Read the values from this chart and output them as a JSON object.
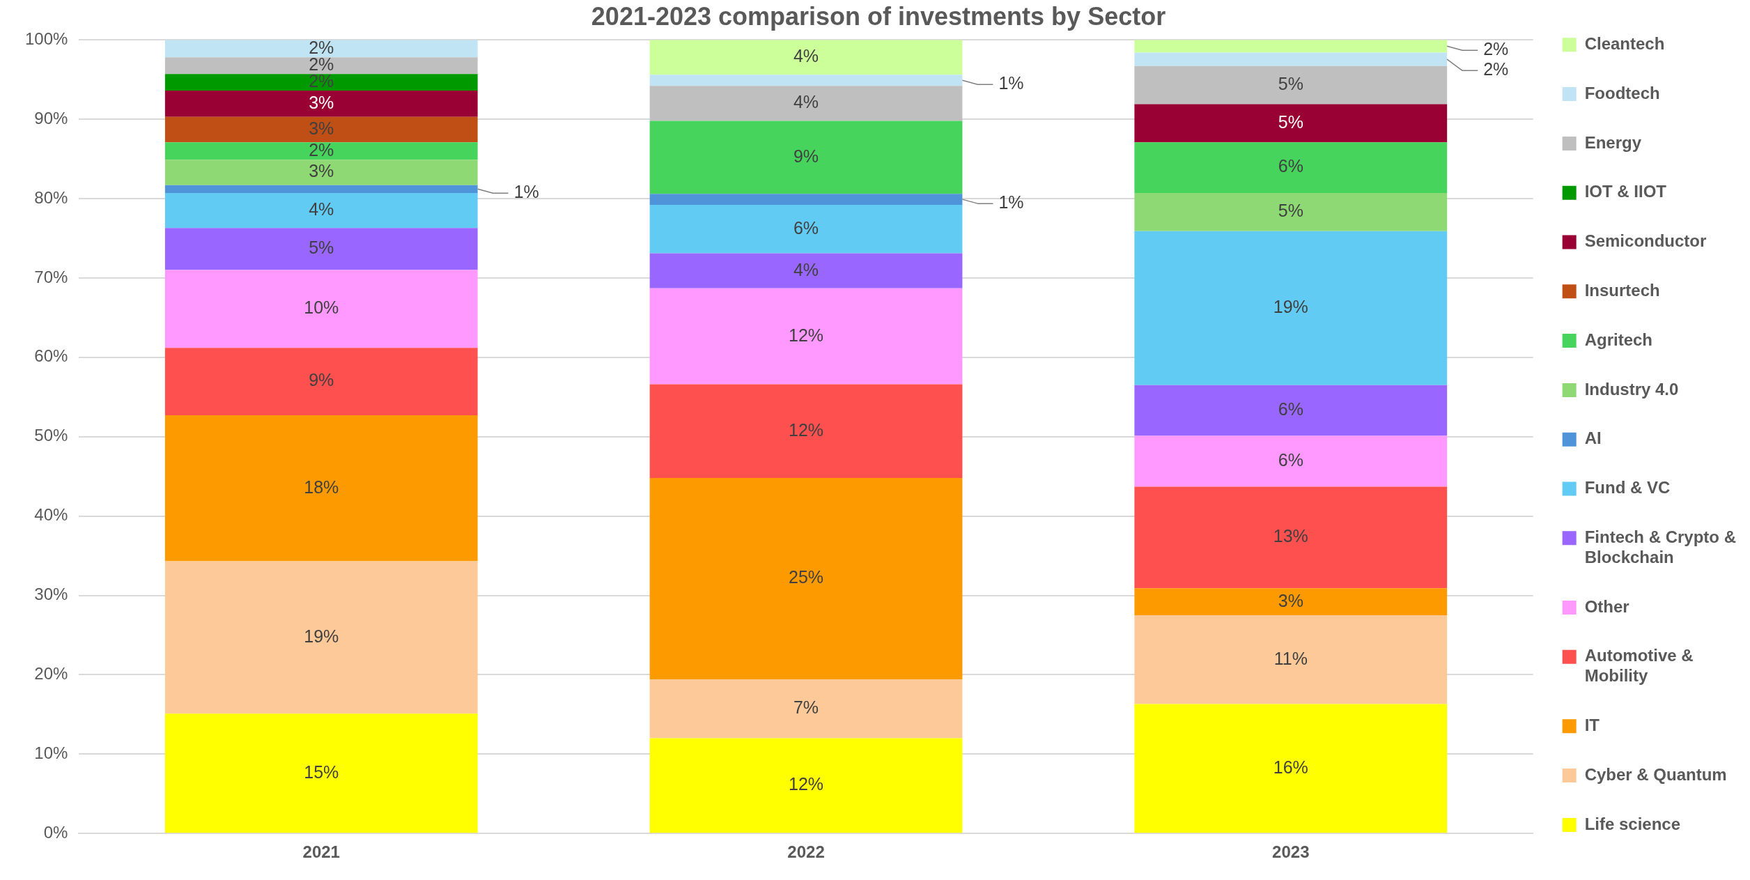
{
  "chart_data": {
    "type": "bar",
    "title": "2021-2023 comparison of investments by Sector",
    "categories": [
      "2021",
      "2022",
      "2023"
    ],
    "stacked": true,
    "ylim": [
      0,
      100
    ],
    "yticks": [
      {
        "value": 0,
        "label": "0%"
      },
      {
        "value": 10,
        "label": "10%"
      },
      {
        "value": 20,
        "label": "20%"
      },
      {
        "value": 30,
        "label": "30%"
      },
      {
        "value": 40,
        "label": "40%"
      },
      {
        "value": 50,
        "label": "50%"
      },
      {
        "value": 60,
        "label": "60%"
      },
      {
        "value": 70,
        "label": "70%"
      },
      {
        "value": 80,
        "label": "80%"
      },
      {
        "value": 90,
        "label": "90%"
      },
      {
        "value": 100,
        "label": "100%"
      }
    ],
    "grid": "y",
    "legend": "right",
    "series": [
      {
        "name": "Life science",
        "color": "#ffff00",
        "values": [
          15.1,
          12.0,
          16.3
        ],
        "value_labels": [
          "15%",
          "12%",
          "16%"
        ]
      },
      {
        "name": "Cyber & Quantum",
        "color": "#fdc998",
        "values": [
          19.2,
          7.4,
          11.2
        ],
        "value_labels": [
          "19%",
          "7%",
          "11%"
        ]
      },
      {
        "name": "IT",
        "color": "#fd9a00",
        "values": [
          18.4,
          25.4,
          3.4
        ],
        "value_labels": [
          "18%",
          "25%",
          "3%"
        ]
      },
      {
        "name": "Automotive & Mobility",
        "color": "#ff5050",
        "values": [
          8.5,
          11.8,
          12.8
        ],
        "value_labels": [
          "9%",
          "12%",
          "13%"
        ]
      },
      {
        "name": "Other",
        "color": "#ff99ff",
        "values": [
          9.8,
          12.1,
          6.4
        ],
        "value_labels": [
          "10%",
          "12%",
          "6%"
        ]
      },
      {
        "name": "Fintech & Crypto & Blockchain",
        "color": "#9966ff",
        "values": [
          5.3,
          4.4,
          6.4
        ],
        "value_labels": [
          "5%",
          "4%",
          "6%"
        ]
      },
      {
        "name": "Fund & VC",
        "color": "#61cbf4",
        "values": [
          4.4,
          6.1,
          19.4
        ],
        "value_labels": [
          "4%",
          "6%",
          "19%"
        ]
      },
      {
        "name": "AI",
        "color": "#4f93d8",
        "values": [
          1.0,
          1.4,
          null
        ],
        "value_labels": [
          "1%",
          "1%",
          null
        ]
      },
      {
        "name": "Industry 4.0",
        "color": "#8ed973",
        "values": [
          3.2,
          null,
          4.8
        ],
        "value_labels": [
          "3%",
          null,
          "5%"
        ]
      },
      {
        "name": "Agritech",
        "color": "#47d45c",
        "values": [
          2.2,
          9.2,
          6.4
        ],
        "value_labels": [
          "2%",
          "9%",
          "6%"
        ]
      },
      {
        "name": "Insurtech",
        "color": "#c04f15",
        "values": [
          3.2,
          null,
          null
        ],
        "value_labels": [
          "3%",
          null,
          null
        ]
      },
      {
        "name": "Semiconductor",
        "color": "#990033",
        "values": [
          3.3,
          null,
          4.8
        ],
        "value_labels": [
          "3%",
          null,
          "5%"
        ]
      },
      {
        "name": "IOT & IIOT",
        "color": "#009900",
        "values": [
          2.1,
          null,
          null
        ],
        "value_labels": [
          "2%",
          null,
          null
        ]
      },
      {
        "name": "Energy",
        "color": "#bfbfbf",
        "values": [
          2.1,
          4.4,
          4.8
        ],
        "value_labels": [
          "2%",
          "4%",
          "5%"
        ]
      },
      {
        "name": "Foodtech",
        "color": "#c1e4f5",
        "values": [
          2.2,
          1.4,
          1.7
        ],
        "value_labels": [
          "2%",
          "1%",
          "2%"
        ]
      },
      {
        "name": "Cleantech",
        "color": "#ccff99",
        "values": [
          null,
          4.4,
          1.6
        ],
        "value_labels": [
          null,
          "4%",
          "2%"
        ]
      }
    ]
  }
}
